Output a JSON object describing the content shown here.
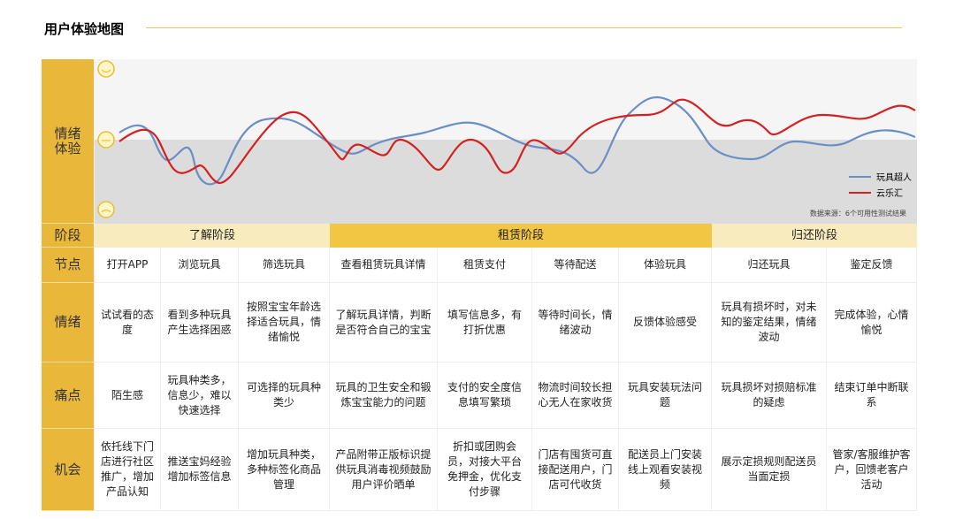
{
  "title": "用户体验地图",
  "chart": {
    "row_label": "情绪体验",
    "legend": [
      "玩具超人",
      "云乐汇"
    ],
    "source": "数据来源：6个可用性测试结果"
  },
  "stages": {
    "row_label": "阶段",
    "items": [
      "了解阶段",
      "租赁阶段",
      "归还阶段"
    ]
  },
  "rows": [
    {
      "label": "节点",
      "cells": [
        "打开APP",
        "浏览玩具",
        "筛选玩具",
        "查看租赁玩具详情",
        "租赁支付",
        "等待配送",
        "体验玩具",
        "归还玩具",
        "鉴定反馈"
      ]
    },
    {
      "label": "情绪",
      "cells": [
        "试试看的态度",
        "看到多种玩具产生选择困惑",
        "按照宝宝年龄选择适合玩具，情绪愉悦",
        "了解玩具详情，判断是否符合自己的宝宝",
        "填写信息多，有打折优惠",
        "等待时间长，情绪波动",
        "反馈体验感受",
        "玩具有损坏时，对未知的鉴定结果，情绪波动",
        "完成体验，心情愉悦"
      ]
    },
    {
      "label": "痛点",
      "cells": [
        "陌生感",
        "玩具种类多，信息少，难以快速选择",
        "可选择的玩具种类少",
        "玩具的卫生安全和锻炼宝宝能力的问题",
        "支付的安全度信息填写繁琐",
        "物流时间较长担心无人在家收货",
        "玩具安装玩法问题",
        "玩具损坏对损赔标准的疑虑",
        "结束订单中断联系"
      ]
    },
    {
      "label": "机会",
      "cells": [
        "依托线下门店进行社区推广，增加产品认知",
        "推送宝妈经验增加标签信息",
        "增加玩具种类，多种标签化商品管理",
        "产品附带正版标识提供玩具消毒视频鼓励用户评价晒单",
        "折扣或团购会员，对接大平台免押金，优化支付步骤",
        "门店有囤货可直接配送用户，门店可代收货",
        "配送员上门安装线上观看安装视频",
        "展示定损规则配送员当面定损",
        "管家/客服维护客户，回馈老客户活动"
      ]
    }
  ]
}
